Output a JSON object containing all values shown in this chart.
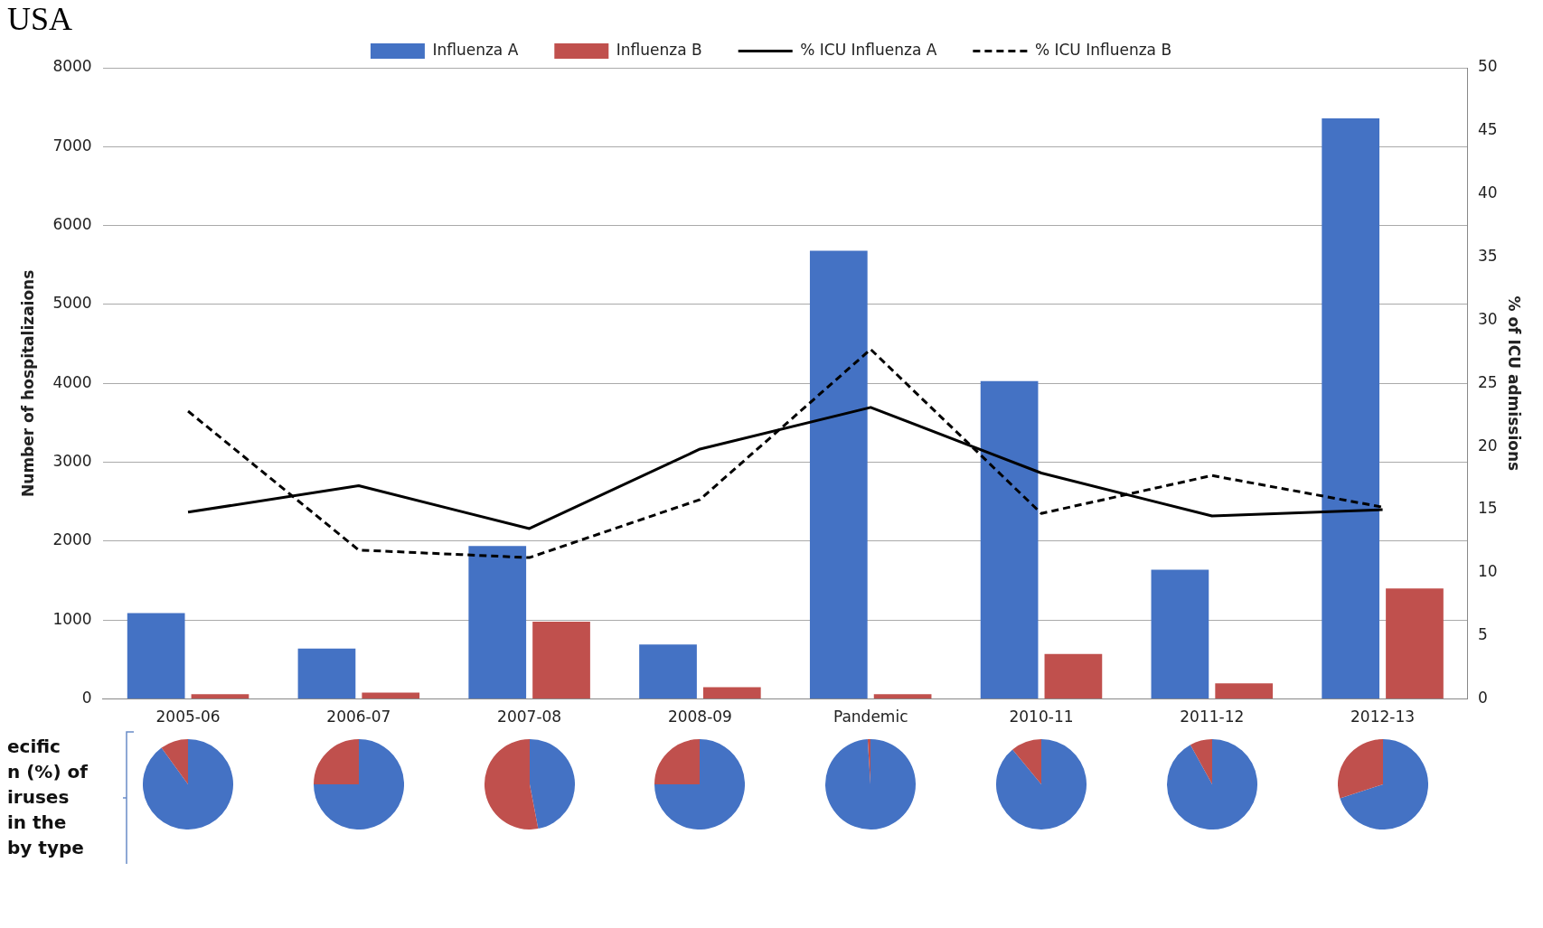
{
  "chart_data": [
    {
      "type": "bar",
      "title": "USA",
      "ylabel": "Number of hospitalizaions",
      "y2label": "% of ICU admissions",
      "categories": [
        "2005-06",
        "2006-07",
        "2007-08",
        "2008-09",
        "Pandemic",
        "2010-11",
        "2011-12",
        "2012-13"
      ],
      "series": [
        {
          "name": "Influenza A",
          "color": "#4472c4",
          "values": [
            1090,
            640,
            1940,
            690,
            5680,
            4030,
            1640,
            7360
          ]
        },
        {
          "name": "Influenza B",
          "color": "#c0504d",
          "values": [
            60,
            80,
            980,
            150,
            60,
            570,
            200,
            1400
          ]
        },
        {
          "name": "% ICU Influenza A",
          "type": "line",
          "axis": "y2",
          "color": "#000000",
          "line_style": "solid",
          "values": [
            14.8,
            16.9,
            13.5,
            19.8,
            23.1,
            17.9,
            14.5,
            15.0
          ]
        },
        {
          "name": "% ICU Influenza B",
          "type": "line",
          "axis": "y2",
          "color": "#000000",
          "line_style": "dashed",
          "values": [
            22.8,
            11.8,
            11.2,
            15.8,
            27.7,
            14.7,
            17.7,
            15.2
          ]
        }
      ],
      "ylim": [
        0,
        8000
      ],
      "yticks": [
        0,
        1000,
        2000,
        3000,
        4000,
        5000,
        6000,
        7000,
        8000
      ],
      "y2lim": [
        0,
        50
      ],
      "y2ticks": [
        0,
        5,
        10,
        15,
        20,
        25,
        30,
        35,
        40,
        45,
        50
      ],
      "grid": "y",
      "legend": "top",
      "marker": "none",
      "annotations": [
        "ecific",
        "n (%) of",
        "iruses",
        "in the",
        "by type"
      ]
    },
    {
      "type": "pie",
      "categories": [
        null,
        null
      ],
      "values": [
        90,
        10
      ],
      "colors": [
        "#4472c4",
        "#c0504d"
      ]
    },
    {
      "type": "pie",
      "categories": [
        null,
        null
      ],
      "values": [
        75,
        25
      ],
      "colors": [
        "#4472c4",
        "#c0504d"
      ]
    },
    {
      "type": "pie",
      "categories": [
        null,
        null
      ],
      "values": [
        47,
        53
      ],
      "colors": [
        "#4472c4",
        "#c0504d"
      ]
    },
    {
      "type": "pie",
      "categories": [
        null,
        null
      ],
      "values": [
        75,
        25
      ],
      "colors": [
        "#4472c4",
        "#c0504d"
      ]
    },
    {
      "type": "pie",
      "categories": [
        null,
        null
      ],
      "values": [
        99,
        1
      ],
      "colors": [
        "#4472c4",
        "#c0504d"
      ]
    },
    {
      "type": "pie",
      "categories": [
        null,
        null
      ],
      "values": [
        89,
        11
      ],
      "colors": [
        "#4472c4",
        "#c0504d"
      ]
    },
    {
      "type": "pie",
      "categories": [
        null,
        null
      ],
      "values": [
        92,
        8
      ],
      "colors": [
        "#4472c4",
        "#c0504d"
      ]
    },
    {
      "type": "pie",
      "categories": [
        null,
        null
      ],
      "values": [
        70,
        30
      ],
      "colors": [
        "#4472c4",
        "#c0504d"
      ]
    }
  ]
}
